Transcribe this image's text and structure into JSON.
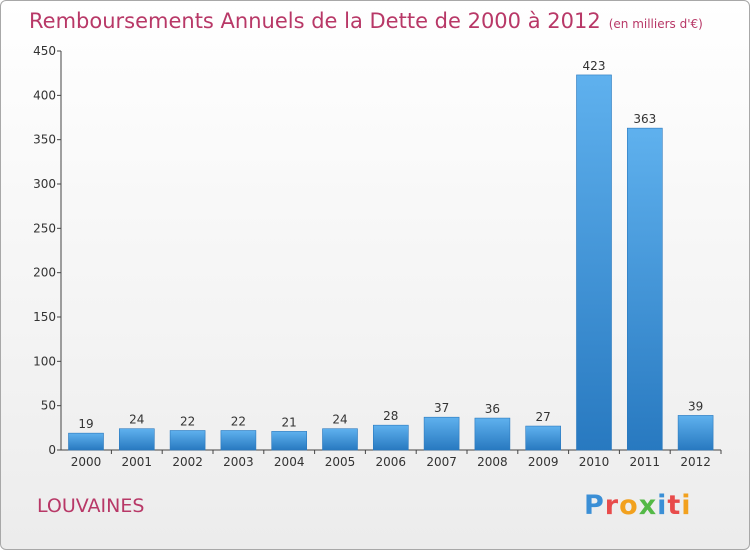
{
  "title": "Remboursements Annuels de la Dette de 2000 à 2012",
  "unit": "(en milliers d'€)",
  "town": "LOUVAINES",
  "logo": {
    "letters": [
      "P",
      "r",
      "o",
      "x",
      "i",
      "t",
      "i"
    ],
    "colors": [
      "#3b8fd6",
      "#e84b4b",
      "#f2a11e",
      "#54b947",
      "#3b8fd6",
      "#e84b4b",
      "#f2a11e"
    ]
  },
  "chart_data": {
    "type": "bar",
    "categories": [
      "2000",
      "2001",
      "2002",
      "2003",
      "2004",
      "2005",
      "2006",
      "2007",
      "2008",
      "2009",
      "2010",
      "2011",
      "2012"
    ],
    "values": [
      19,
      24,
      22,
      22,
      21,
      24,
      28,
      37,
      36,
      27,
      423,
      363,
      39
    ],
    "title": "Remboursements Annuels de la Dette de 2000 à 2012",
    "ylim": [
      0,
      450
    ],
    "yticks": [
      0,
      50,
      100,
      150,
      200,
      250,
      300,
      350,
      400,
      450
    ],
    "grid": false,
    "bar_color": "#3d8fd9"
  }
}
